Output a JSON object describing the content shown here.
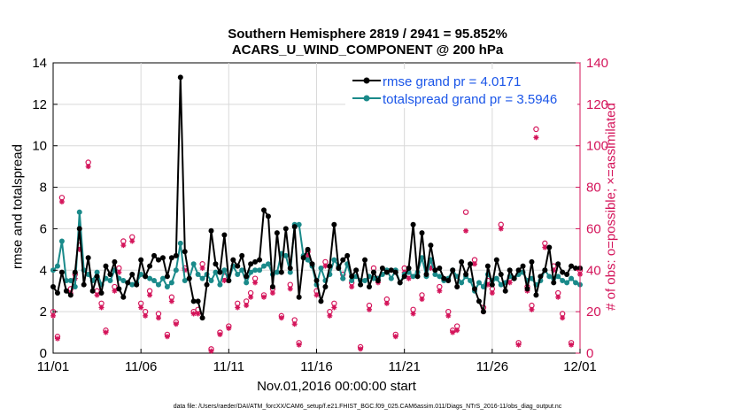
{
  "chart_data": {
    "type": "line",
    "title": "Southern Hemisphere 2819 / 2941 = 95.852%",
    "subtitle": "ACARS_U_WIND_COMPONENT @ 200 hPa",
    "xlabel": "Nov.01,2016 00:00:00 start",
    "ylabel_left": "rmse and totalspread",
    "ylabel_right": "# of obs: o=possible; ×=assimilated",
    "footer": "data file: /Users/raeder/DAI/ATM_forcXX/CAM6_setup/f.e21.FHIST_BGC.f09_025.CAM6assim.011/Diags_NTrS_2016-11/obs_diag_output.nc",
    "x_ticks": [
      "11/01",
      "11/06",
      "11/11",
      "11/16",
      "11/21",
      "11/26",
      "12/01"
    ],
    "x_tick_days": [
      0,
      5,
      10,
      15,
      20,
      25,
      30
    ],
    "xlim": [
      0,
      30
    ],
    "ylim_left": [
      0,
      14
    ],
    "ylim_right": [
      0,
      140
    ],
    "y_ticks_left": [
      0,
      2,
      4,
      6,
      8,
      10,
      12,
      14
    ],
    "y_ticks_right": [
      0,
      20,
      40,
      60,
      80,
      100,
      120,
      140
    ],
    "colors": {
      "rmse": "#000000",
      "spread": "#1a8a8a",
      "obs": "#d4145a",
      "legend_text": "#1a55e8"
    },
    "series": [
      {
        "name": "rmse grand pr = 4.0171",
        "x": [
          0.0,
          0.25,
          0.5,
          0.75,
          1.0,
          1.25,
          1.5,
          1.75,
          2.0,
          2.25,
          2.5,
          2.75,
          3.0,
          3.25,
          3.5,
          3.75,
          4.0,
          4.25,
          4.5,
          4.75,
          5.0,
          5.25,
          5.5,
          5.75,
          6.0,
          6.25,
          6.5,
          6.75,
          7.0,
          7.25,
          7.5,
          7.75,
          8.0,
          8.25,
          8.5,
          8.75,
          9.0,
          9.25,
          9.5,
          9.75,
          10.0,
          10.25,
          10.5,
          10.75,
          11.0,
          11.25,
          11.5,
          11.75,
          12.0,
          12.25,
          12.5,
          12.75,
          13.0,
          13.25,
          13.5,
          13.75,
          14.0,
          14.25,
          14.5,
          14.75,
          15.0,
          15.25,
          15.5,
          15.75,
          16.0,
          16.25,
          16.5,
          16.75,
          17.0,
          17.25,
          17.5,
          17.75,
          18.0,
          18.25,
          18.5,
          18.75,
          19.0,
          19.25,
          19.5,
          19.75,
          20.0,
          20.25,
          20.5,
          20.75,
          21.0,
          21.25,
          21.5,
          21.75,
          22.0,
          22.25,
          22.5,
          22.75,
          23.0,
          23.25,
          23.5,
          23.75,
          24.0,
          24.25,
          24.5,
          24.75,
          25.0,
          25.25,
          25.5,
          25.75,
          26.0,
          26.25,
          26.5,
          26.75,
          27.0,
          27.25,
          27.5,
          27.75,
          28.0,
          28.25,
          28.5,
          28.75,
          29.0,
          29.25,
          29.5,
          29.75,
          30.0
        ],
        "values": [
          3.2,
          2.9,
          3.9,
          3.0,
          2.8,
          3.9,
          6.0,
          3.3,
          4.6,
          3.0,
          3.7,
          2.9,
          4.2,
          3.8,
          4.4,
          3.1,
          2.7,
          3.4,
          3.8,
          3.3,
          4.5,
          3.7,
          4.2,
          4.7,
          4.5,
          4.6,
          3.7,
          4.6,
          4.7,
          13.3,
          4.9,
          3.6,
          2.5,
          2.5,
          1.7,
          3.3,
          5.9,
          4.3,
          3.9,
          5.7,
          3.5,
          4.5,
          4.2,
          4.7,
          3.7,
          4.3,
          4.4,
          4.5,
          6.9,
          6.6,
          3.2,
          5.8,
          3.9,
          6.0,
          4.1,
          6.1,
          2.7,
          4.6,
          5.0,
          4.3,
          3.5,
          2.5,
          3.2,
          4.2,
          6.2,
          4.1,
          4.5,
          4.7,
          3.7,
          4.0,
          3.3,
          4.5,
          3.2,
          3.9,
          3.5,
          4.1,
          3.9,
          4.0,
          3.9,
          3.4,
          3.7,
          4.1,
          6.2,
          3.7,
          5.8,
          3.8,
          5.2,
          4.0,
          4.1,
          3.6,
          3.5,
          4.0,
          3.2,
          4.4,
          3.8,
          4.3,
          3.1,
          2.5,
          2.0,
          4.2,
          3.3,
          4.5,
          3.8,
          3.0,
          4.0,
          3.6,
          4.0,
          4.2,
          3.1,
          4.4,
          2.8,
          3.7,
          4.0,
          5.1,
          3.4,
          4.3,
          3.9,
          3.8,
          4.2,
          4.1,
          4.1
        ],
        "color": "#000000"
      },
      {
        "name": "totalspread grand pr = 3.5946",
        "x": [
          0.0,
          0.25,
          0.5,
          0.75,
          1.0,
          1.25,
          1.5,
          1.75,
          2.0,
          2.25,
          2.5,
          2.75,
          3.0,
          3.25,
          3.5,
          3.75,
          4.0,
          4.25,
          4.5,
          4.75,
          5.0,
          5.25,
          5.5,
          5.75,
          6.0,
          6.25,
          6.5,
          6.75,
          7.0,
          7.25,
          7.5,
          7.75,
          8.0,
          8.25,
          8.5,
          8.75,
          9.0,
          9.25,
          9.5,
          9.75,
          10.0,
          10.25,
          10.5,
          10.75,
          11.0,
          11.25,
          11.5,
          11.75,
          12.0,
          12.25,
          12.5,
          12.75,
          13.0,
          13.25,
          13.5,
          13.75,
          14.0,
          14.25,
          14.5,
          14.75,
          15.0,
          15.25,
          15.5,
          15.75,
          16.0,
          16.25,
          16.5,
          16.75,
          17.0,
          17.25,
          17.5,
          17.75,
          18.0,
          18.25,
          18.5,
          18.75,
          19.0,
          19.25,
          19.5,
          19.75,
          20.0,
          20.25,
          20.5,
          20.75,
          21.0,
          21.25,
          21.5,
          21.75,
          22.0,
          22.25,
          22.5,
          22.75,
          23.0,
          23.25,
          23.5,
          23.75,
          24.0,
          24.25,
          24.5,
          24.75,
          25.0,
          25.25,
          25.5,
          25.75,
          26.0,
          26.25,
          26.5,
          26.75,
          27.0,
          27.25,
          27.5,
          27.75,
          28.0,
          28.25,
          28.5,
          28.75,
          29.0,
          29.25,
          29.5,
          29.75,
          30.0
        ],
        "values": [
          4.0,
          4.2,
          5.4,
          3.5,
          3.5,
          3.2,
          6.8,
          4.0,
          3.8,
          3.5,
          3.9,
          3.3,
          3.6,
          3.5,
          4.0,
          3.6,
          3.5,
          3.4,
          3.3,
          3.4,
          3.8,
          3.7,
          3.6,
          3.5,
          3.3,
          3.6,
          3.2,
          3.4,
          4.0,
          5.3,
          3.5,
          3.6,
          4.3,
          3.8,
          3.6,
          3.8,
          3.5,
          3.9,
          3.3,
          4.0,
          3.5,
          4.2,
          3.8,
          4.0,
          3.4,
          3.9,
          4.0,
          4.0,
          4.2,
          4.3,
          3.8,
          3.9,
          4.8,
          4.7,
          3.9,
          6.2,
          6.2,
          4.7,
          4.5,
          4.2,
          3.3,
          4.1,
          3.5,
          3.8,
          4.5,
          4.2,
          3.6,
          4.3,
          3.5,
          3.7,
          3.5,
          3.5,
          3.7,
          3.6,
          3.6,
          3.8,
          4.0,
          3.6,
          4.0,
          3.4,
          3.8,
          3.9,
          3.7,
          3.9,
          4.6,
          3.7,
          4.5,
          3.8,
          3.7,
          3.5,
          3.6,
          4.0,
          3.7,
          3.4,
          3.7,
          3.5,
          3.0,
          3.4,
          3.2,
          3.8,
          3.5,
          3.6,
          3.3,
          3.4,
          3.7,
          3.6,
          3.8,
          3.9,
          3.5,
          3.6,
          3.3,
          3.5,
          4.0,
          3.7,
          3.6,
          3.7,
          3.5,
          3.4,
          3.6,
          3.4,
          3.3
        ],
        "color": "#1a8a8a"
      }
    ],
    "obs_possible": {
      "x": [
        0.0,
        0.5,
        1.0,
        1.5,
        2.0,
        2.5,
        3.0,
        3.5,
        4.0,
        4.5,
        5.0,
        5.5,
        6.0,
        6.5,
        7.0,
        7.5,
        8.0,
        8.5,
        9.0,
        9.5,
        10.0,
        10.5,
        11.0,
        11.5,
        12.0,
        12.5,
        13.0,
        13.5,
        14.0,
        14.5,
        15.0,
        15.5,
        16.0,
        16.5,
        17.0,
        17.5,
        18.0,
        18.5,
        19.0,
        19.5,
        20.0,
        20.5,
        21.0,
        21.5,
        22.0,
        22.5,
        23.0,
        23.5,
        24.0,
        24.5,
        25.0,
        25.5,
        26.0,
        26.5,
        27.0,
        27.5,
        28.0,
        28.5,
        29.0,
        29.5,
        30.0,
        0.25,
        1.25,
        2.75,
        3.75,
        5.25,
        6.75,
        8.25,
        9.75,
        11.25,
        13.75,
        15.75,
        18.25,
        20.25,
        22.75,
        24.75,
        27.25,
        28.75
      ],
      "values": [
        20,
        75,
        31,
        52,
        92,
        30,
        11,
        32,
        54,
        56,
        24,
        30,
        19,
        9,
        15,
        41,
        20,
        43,
        2,
        10,
        13,
        24,
        25,
        36,
        28,
        31,
        18,
        33,
        5,
        49,
        30,
        44,
        24,
        38,
        34,
        3,
        23,
        36,
        26,
        9,
        41,
        21,
        28,
        43,
        32,
        20,
        13,
        68,
        45,
        22,
        31,
        62,
        36,
        5,
        32,
        108,
        53,
        42,
        19,
        5,
        40,
        8,
        38,
        24,
        41,
        20,
        27,
        21,
        37,
        29,
        16,
        20,
        41,
        38,
        11,
        35,
        23,
        29
      ],
      "color": "#d4145a"
    },
    "obs_assimilated": {
      "x": [
        0.0,
        0.5,
        1.0,
        1.5,
        2.0,
        2.5,
        3.0,
        3.5,
        4.0,
        4.5,
        5.0,
        5.5,
        6.0,
        6.5,
        7.0,
        7.5,
        8.0,
        8.5,
        9.0,
        9.5,
        10.0,
        10.5,
        11.0,
        11.5,
        12.0,
        12.5,
        13.0,
        13.5,
        14.0,
        14.5,
        15.0,
        15.5,
        16.0,
        16.5,
        17.0,
        17.5,
        18.0,
        18.5,
        19.0,
        19.5,
        20.0,
        20.5,
        21.0,
        21.5,
        22.0,
        22.5,
        23.0,
        23.5,
        24.0,
        24.5,
        25.0,
        25.5,
        26.0,
        26.5,
        27.0,
        27.5,
        28.0,
        28.5,
        29.0,
        29.5,
        30.0,
        0.25,
        1.25,
        2.75,
        3.75,
        5.25,
        6.75,
        8.25,
        9.75,
        11.25,
        13.75,
        15.75,
        18.25,
        20.25,
        22.75,
        24.75,
        27.25,
        28.75
      ],
      "values": [
        18,
        73,
        29,
        50,
        90,
        28,
        10,
        30,
        52,
        54,
        22,
        28,
        17,
        8,
        14,
        40,
        19,
        41,
        1,
        9,
        12,
        22,
        23,
        34,
        27,
        29,
        17,
        31,
        4,
        47,
        28,
        42,
        22,
        36,
        32,
        2,
        21,
        34,
        24,
        8,
        39,
        19,
        26,
        41,
        30,
        18,
        11,
        59,
        43,
        20,
        29,
        60,
        34,
        4,
        30,
        104,
        51,
        40,
        17,
        4,
        38,
        7,
        36,
        22,
        39,
        18,
        25,
        19,
        35,
        27,
        14,
        18,
        39,
        36,
        10,
        33,
        21,
        27
      ],
      "color": "#d4145a"
    }
  }
}
